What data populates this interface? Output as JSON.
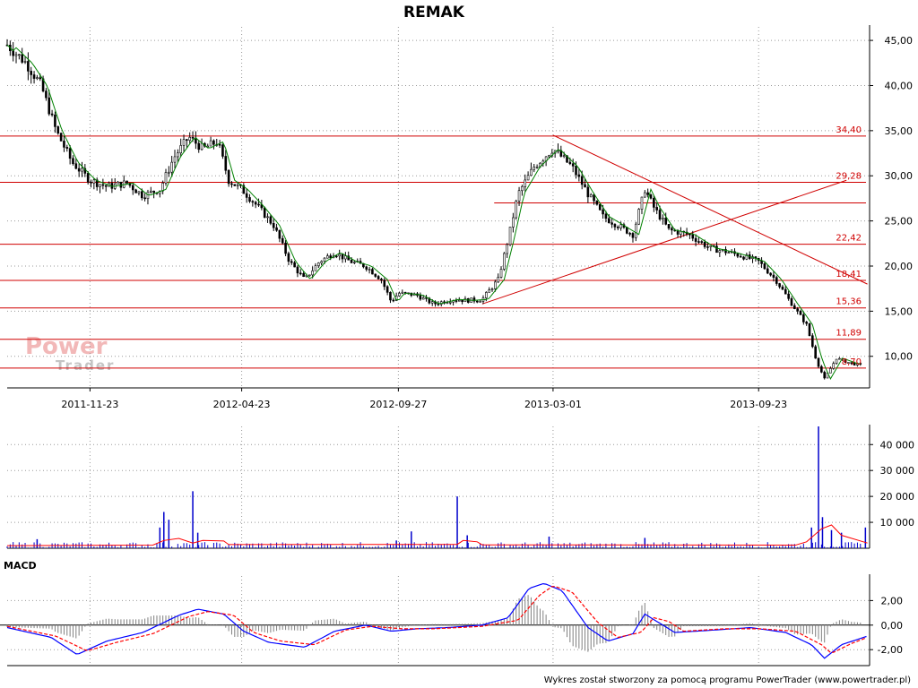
{
  "chart_data": {
    "type": "candlestick",
    "title": "REMAK",
    "price_panel": {
      "ylim": [
        6.5,
        46.5
      ],
      "y_ticks": [
        "45,00",
        "40,00",
        "35,00",
        "30,00",
        "25,00",
        "20,00",
        "15,00",
        "10,00"
      ],
      "x_ticks": [
        "2011-11-23",
        "2012-04-23",
        "2012-09-27",
        "2013-03-01",
        "2013-09-23"
      ],
      "grid": true,
      "levels": [
        {
          "value": 34.4,
          "label": "34,40"
        },
        {
          "value": 29.28,
          "label": "29,28"
        },
        {
          "value": 22.42,
          "label": "22,42"
        },
        {
          "value": 18.41,
          "label": "18,41"
        },
        {
          "value": 15.36,
          "label": "15,36"
        },
        {
          "value": 11.89,
          "label": "11,89"
        },
        {
          "value": 8.7,
          "label": "8,70"
        }
      ],
      "extra_level": 27.0,
      "trendlines": [
        {
          "from": [
            "2013-03-01",
            34.5
          ],
          "to": [
            "2014-01-10",
            18.0
          ]
        },
        {
          "from": [
            "2012-12-20",
            15.8
          ],
          "to": [
            "2013-12-20",
            29.5
          ]
        }
      ],
      "moving_average_color": "#008000",
      "candle_color": "#000000",
      "close_path": [
        [
          "2011-09-01",
          44.5
        ],
        [
          "2011-09-20",
          42.5
        ],
        [
          "2011-10-05",
          40.0
        ],
        [
          "2011-10-20",
          35.0
        ],
        [
          "2011-11-05",
          31.5
        ],
        [
          "2011-11-23",
          29.5
        ],
        [
          "2011-12-10",
          28.8
        ],
        [
          "2011-12-30",
          29.2
        ],
        [
          "2012-01-15",
          27.8
        ],
        [
          "2012-02-01",
          28.5
        ],
        [
          "2012-02-15",
          32.0
        ],
        [
          "2012-03-01",
          34.3
        ],
        [
          "2012-03-15",
          33.0
        ],
        [
          "2012-03-30",
          33.8
        ],
        [
          "2012-04-10",
          29.5
        ],
        [
          "2012-04-23",
          28.5
        ],
        [
          "2012-05-10",
          26.5
        ],
        [
          "2012-05-25",
          24.5
        ],
        [
          "2012-06-10",
          20.5
        ],
        [
          "2012-06-25",
          18.5
        ],
        [
          "2012-07-10",
          20.5
        ],
        [
          "2012-07-25",
          21.5
        ],
        [
          "2012-08-10",
          20.5
        ],
        [
          "2012-08-25",
          20.0
        ],
        [
          "2012-09-10",
          18.5
        ],
        [
          "2012-09-20",
          16.0
        ],
        [
          "2012-09-27",
          17.0
        ],
        [
          "2012-10-15",
          16.8
        ],
        [
          "2012-11-01",
          15.8
        ],
        [
          "2012-11-20",
          16.3
        ],
        [
          "2012-12-05",
          16.2
        ],
        [
          "2012-12-20",
          16.3
        ],
        [
          "2013-01-05",
          18.5
        ],
        [
          "2013-01-15",
          23.0
        ],
        [
          "2013-01-25",
          28.0
        ],
        [
          "2013-02-10",
          31.0
        ],
        [
          "2013-03-01",
          33.0
        ],
        [
          "2013-03-20",
          31.0
        ],
        [
          "2013-04-05",
          28.0
        ],
        [
          "2013-04-20",
          25.5
        ],
        [
          "2013-05-05",
          24.5
        ],
        [
          "2013-05-20",
          23.5
        ],
        [
          "2013-06-01",
          28.5
        ],
        [
          "2013-06-10",
          26.5
        ],
        [
          "2013-06-25",
          24.0
        ],
        [
          "2013-07-15",
          23.5
        ],
        [
          "2013-08-05",
          22.0
        ],
        [
          "2013-08-25",
          21.5
        ],
        [
          "2013-09-10",
          21.0
        ],
        [
          "2013-09-23",
          20.5
        ],
        [
          "2013-10-10",
          18.5
        ],
        [
          "2013-10-25",
          16.0
        ],
        [
          "2013-11-10",
          13.5
        ],
        [
          "2013-11-20",
          9.5
        ],
        [
          "2013-11-28",
          7.5
        ],
        [
          "2013-12-10",
          9.8
        ],
        [
          "2013-12-25",
          9.2
        ],
        [
          "2014-01-05",
          9.0
        ]
      ]
    },
    "volume_panel": {
      "ylim": [
        0,
        47000
      ],
      "y_ticks": [
        "40 000",
        "30 000",
        "20 000",
        "10 000"
      ],
      "bar_color": "#0000cc",
      "average_color": "#ff0000",
      "spikes": [
        [
          "2011-10-01",
          3500
        ],
        [
          "2012-02-01",
          8000
        ],
        [
          "2012-02-05",
          14000
        ],
        [
          "2012-02-10",
          11000
        ],
        [
          "2012-03-05",
          22000
        ],
        [
          "2012-03-10",
          6000
        ],
        [
          "2012-09-25",
          3000
        ],
        [
          "2012-10-10",
          6500
        ],
        [
          "2012-11-25",
          20000
        ],
        [
          "2012-12-05",
          5000
        ],
        [
          "2013-02-25",
          4500
        ],
        [
          "2013-06-01",
          4000
        ],
        [
          "2013-11-15",
          8000
        ],
        [
          "2013-11-22",
          47000
        ],
        [
          "2013-11-26",
          12000
        ],
        [
          "2013-12-05",
          7000
        ],
        [
          "2013-12-15",
          6000
        ],
        [
          "2014-01-08",
          8000
        ]
      ],
      "average_path": [
        [
          "2011-09-01",
          1000
        ],
        [
          "2012-01-25",
          1200
        ],
        [
          "2012-02-05",
          3000
        ],
        [
          "2012-02-20",
          3800
        ],
        [
          "2012-03-05",
          2000
        ],
        [
          "2012-03-15",
          3000
        ],
        [
          "2012-04-05",
          2800
        ],
        [
          "2012-04-10",
          1400
        ],
        [
          "2012-11-25",
          1500
        ],
        [
          "2012-12-01",
          3000
        ],
        [
          "2012-12-15",
          2500
        ],
        [
          "2012-12-20",
          1300
        ],
        [
          "2013-10-30",
          1200
        ],
        [
          "2013-11-10",
          2500
        ],
        [
          "2013-11-25",
          7500
        ],
        [
          "2013-12-05",
          9000
        ],
        [
          "2013-12-15",
          5000
        ],
        [
          "2014-01-10",
          2000
        ]
      ]
    },
    "macd_panel": {
      "label": "MACD",
      "ylim": [
        -3.3,
        4.0
      ],
      "y_ticks": [
        "2,00",
        "0,00",
        "-2,00"
      ],
      "macd_color": "#0000ff",
      "signal_color": "#ff0000",
      "histogram_color": "#808080",
      "macd": [
        [
          "2011-09-01",
          -0.2
        ],
        [
          "2011-10-15",
          -1.0
        ],
        [
          "2011-11-10",
          -2.4
        ],
        [
          "2011-12-10",
          -1.3
        ],
        [
          "2012-01-15",
          -0.6
        ],
        [
          "2012-02-20",
          0.8
        ],
        [
          "2012-03-10",
          1.3
        ],
        [
          "2012-04-05",
          0.9
        ],
        [
          "2012-04-25",
          -0.5
        ],
        [
          "2012-05-20",
          -1.4
        ],
        [
          "2012-06-25",
          -1.8
        ],
        [
          "2012-07-25",
          -0.5
        ],
        [
          "2012-08-25",
          0.0
        ],
        [
          "2012-09-20",
          -0.5
        ],
        [
          "2012-10-15",
          -0.3
        ],
        [
          "2012-11-15",
          -0.2
        ],
        [
          "2012-12-20",
          0.0
        ],
        [
          "2013-01-15",
          0.6
        ],
        [
          "2013-02-05",
          3.0
        ],
        [
          "2013-02-20",
          3.4
        ],
        [
          "2013-03-10",
          2.8
        ],
        [
          "2013-04-05",
          -0.2
        ],
        [
          "2013-04-25",
          -1.3
        ],
        [
          "2013-05-20",
          -0.7
        ],
        [
          "2013-06-01",
          0.9
        ],
        [
          "2013-06-15",
          0.2
        ],
        [
          "2013-07-01",
          -0.6
        ],
        [
          "2013-08-10",
          -0.4
        ],
        [
          "2013-09-15",
          -0.2
        ],
        [
          "2013-10-20",
          -0.6
        ],
        [
          "2013-11-15",
          -1.6
        ],
        [
          "2013-11-28",
          -2.7
        ],
        [
          "2013-12-15",
          -1.6
        ],
        [
          "2014-01-10",
          -0.9
        ]
      ],
      "signal": [
        [
          "2011-09-01",
          -0.1
        ],
        [
          "2011-10-20",
          -0.9
        ],
        [
          "2011-11-20",
          -2.1
        ],
        [
          "2011-12-20",
          -1.4
        ],
        [
          "2012-01-25",
          -0.7
        ],
        [
          "2012-03-01",
          0.7
        ],
        [
          "2012-03-20",
          1.1
        ],
        [
          "2012-04-15",
          0.8
        ],
        [
          "2012-05-05",
          -0.6
        ],
        [
          "2012-06-01",
          -1.3
        ],
        [
          "2012-07-05",
          -1.6
        ],
        [
          "2012-08-05",
          -0.4
        ],
        [
          "2012-09-01",
          -0.1
        ],
        [
          "2012-10-01",
          -0.3
        ],
        [
          "2012-11-01",
          -0.3
        ],
        [
          "2012-12-20",
          -0.1
        ],
        [
          "2013-01-25",
          0.4
        ],
        [
          "2013-02-15",
          2.4
        ],
        [
          "2013-03-01",
          3.2
        ],
        [
          "2013-03-20",
          2.7
        ],
        [
          "2013-04-15",
          0.2
        ],
        [
          "2013-05-05",
          -1.0
        ],
        [
          "2013-05-28",
          -0.6
        ],
        [
          "2013-06-10",
          0.6
        ],
        [
          "2013-06-25",
          0.3
        ],
        [
          "2013-07-10",
          -0.5
        ],
        [
          "2013-08-20",
          -0.3
        ],
        [
          "2013-09-25",
          -0.3
        ],
        [
          "2013-10-30",
          -0.5
        ],
        [
          "2013-11-25",
          -1.6
        ],
        [
          "2013-12-05",
          -2.3
        ],
        [
          "2013-12-25",
          -1.5
        ],
        [
          "2014-01-10",
          -1.0
        ]
      ]
    }
  },
  "logo": {
    "line1": "Power",
    "line2": "Trader"
  },
  "footer": "Wykres został stworzony za pomocą programu PowerTrader (www.powertrader.pl)"
}
